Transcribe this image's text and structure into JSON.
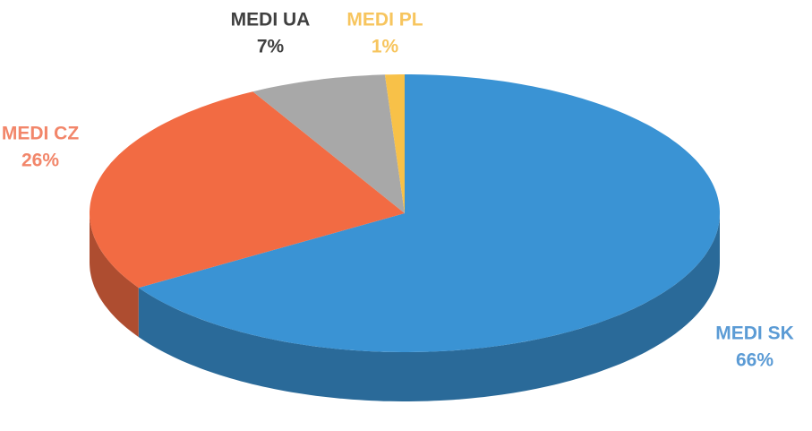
{
  "chart_data": {
    "type": "pie",
    "categories": [
      "MEDI SK",
      "MEDI CZ",
      "MEDI UA",
      "MEDI PL"
    ],
    "values": [
      66,
      26,
      7,
      1
    ],
    "value_labels": [
      "66%",
      "26%",
      "7%",
      "1%"
    ],
    "colors": [
      "#3a93d4",
      "#f26b43",
      "#a8a8a8",
      "#f8c148"
    ],
    "label_colors": [
      "#5b9bd5",
      "#f2866a",
      "#404040",
      "#f7c55e"
    ]
  }
}
